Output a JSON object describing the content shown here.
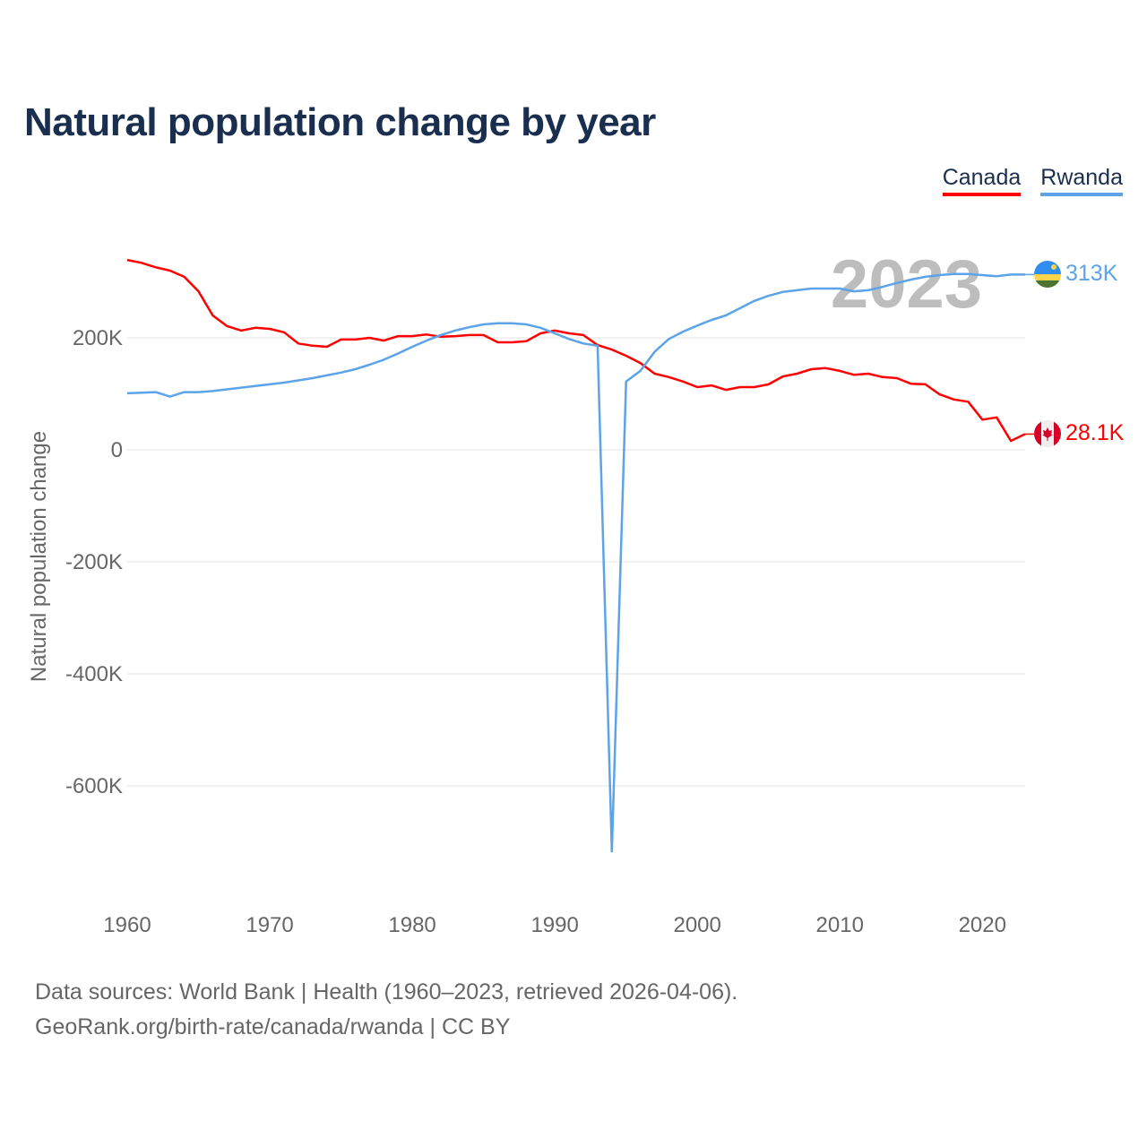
{
  "chart_data": {
    "type": "line",
    "title": "Natural population change by year",
    "xlabel": "",
    "ylabel": "Natural population change",
    "xlim": [
      1960,
      2023
    ],
    "ylim": [
      -760000,
      360000
    ],
    "x_ticks": [
      1960,
      1970,
      1980,
      1990,
      2000,
      2010,
      2020
    ],
    "y_ticks": [
      200000,
      0,
      -200000,
      -400000,
      -600000
    ],
    "y_tick_labels": [
      "200K",
      "0",
      "-200K",
      "-400K",
      "-600K"
    ],
    "grid": true,
    "legend_position": "top-right",
    "year_label": "2023",
    "x": [
      1960,
      1961,
      1962,
      1963,
      1964,
      1965,
      1966,
      1967,
      1968,
      1969,
      1970,
      1971,
      1972,
      1973,
      1974,
      1975,
      1976,
      1977,
      1978,
      1979,
      1980,
      1981,
      1982,
      1983,
      1984,
      1985,
      1986,
      1987,
      1988,
      1989,
      1990,
      1991,
      1992,
      1993,
      1994,
      1995,
      1996,
      1997,
      1998,
      1999,
      2000,
      2001,
      2002,
      2003,
      2004,
      2005,
      2006,
      2007,
      2008,
      2009,
      2010,
      2011,
      2012,
      2013,
      2014,
      2015,
      2016,
      2017,
      2018,
      2019,
      2020,
      2021,
      2022,
      2023
    ],
    "series": [
      {
        "name": "Canada",
        "color": "#ff0000",
        "end_label": "28.1K",
        "values": [
          339000,
          334000,
          326000,
          320000,
          309000,
          283000,
          240000,
          221000,
          213000,
          218000,
          216000,
          210000,
          190000,
          186000,
          184000,
          197000,
          197000,
          200000,
          195000,
          203000,
          203000,
          206000,
          202000,
          203000,
          205000,
          205000,
          192000,
          192000,
          194000,
          208000,
          213000,
          208000,
          205000,
          187000,
          179000,
          168000,
          155000,
          136000,
          130000,
          122000,
          112000,
          115000,
          107000,
          112000,
          112000,
          117000,
          131000,
          136000,
          144000,
          146000,
          141000,
          134000,
          136000,
          130000,
          128000,
          118000,
          117000,
          99000,
          90000,
          86000,
          54000,
          58000,
          16000,
          28100
        ]
      },
      {
        "name": "Rwanda",
        "color": "#5ca3e8",
        "end_label": "313K",
        "values": [
          101000,
          102000,
          103000,
          95000,
          103000,
          103000,
          105000,
          108000,
          111000,
          114000,
          117000,
          120000,
          124000,
          128000,
          133000,
          138000,
          144000,
          152000,
          161000,
          172000,
          184000,
          195000,
          205000,
          213000,
          219000,
          224000,
          226000,
          226000,
          224000,
          218000,
          208000,
          198000,
          190000,
          186000,
          -717000,
          122000,
          141000,
          175000,
          198000,
          211000,
          222000,
          232000,
          240000,
          253000,
          266000,
          275000,
          282000,
          285000,
          288000,
          288000,
          288000,
          283000,
          285000,
          291000,
          298000,
          304000,
          309000,
          312000,
          314000,
          314000,
          312000,
          310000,
          313000,
          313000
        ]
      }
    ]
  },
  "source": {
    "line1": "Data sources: World Bank | Health (1960–2023, retrieved 2026-04-06).",
    "line2": "GeoRank.org/birth-rate/canada/rwanda | CC BY"
  }
}
